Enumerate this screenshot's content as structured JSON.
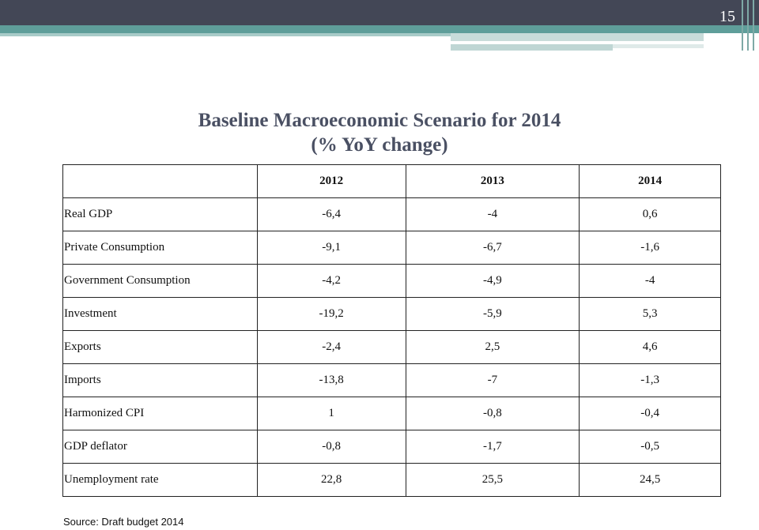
{
  "slide": {
    "page_number": "15",
    "title_line1": "Baseline Macroeconomic Scenario for 2014",
    "title_line2": "(% YoY change)",
    "source": "Source: Draft budget 2014"
  },
  "colors": {
    "top_bar": "#434756",
    "teal_band": "#5f9e9a",
    "title_text": "#4a5063"
  },
  "table": {
    "columns": [
      "",
      "2012",
      "2013",
      "2014"
    ],
    "rows": [
      {
        "label": "Real GDP",
        "values": [
          "-6,4",
          "-4",
          "0,6"
        ]
      },
      {
        "label": "Private Consumption",
        "values": [
          "-9,1",
          "-6,7",
          "-1,6"
        ]
      },
      {
        "label": "Government Consumption",
        "values": [
          "-4,2",
          "-4,9",
          "-4"
        ]
      },
      {
        "label": "Investment",
        "values": [
          "-19,2",
          "-5,9",
          "5,3"
        ]
      },
      {
        "label": "Exports",
        "values": [
          "-2,4",
          "2,5",
          "4,6"
        ]
      },
      {
        "label": "Imports",
        "values": [
          "-13,8",
          "-7",
          "-1,3"
        ]
      },
      {
        "label": "Harmonized CPI",
        "values": [
          "1",
          "-0,8",
          "-0,4"
        ]
      },
      {
        "label": "GDP deflator",
        "values": [
          "-0,8",
          "-1,7",
          "-0,5"
        ]
      },
      {
        "label": "Unemployment rate",
        "values": [
          "22,8",
          "25,5",
          "24,5"
        ]
      }
    ]
  }
}
